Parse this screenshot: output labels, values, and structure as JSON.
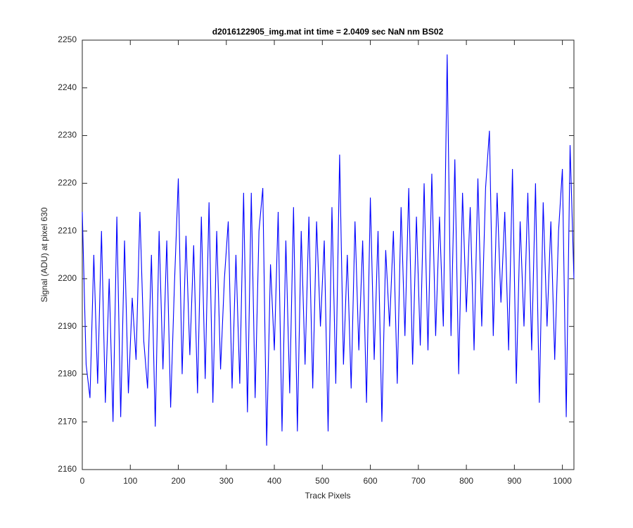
{
  "chart_data": {
    "type": "line",
    "title": "d2016122905_img.mat int time = 2.0409 sec  NaN nm BS02",
    "xlabel": "Track Pixels",
    "ylabel": "Signal (ADU) at pixel 630",
    "x": [
      0,
      8,
      16,
      24,
      32,
      40,
      48,
      56,
      64,
      72,
      80,
      88,
      96,
      104,
      112,
      120,
      128,
      136,
      144,
      152,
      160,
      168,
      176,
      184,
      192,
      200,
      208,
      216,
      224,
      232,
      240,
      248,
      256,
      264,
      272,
      280,
      288,
      296,
      304,
      312,
      320,
      328,
      336,
      344,
      352,
      360,
      368,
      376,
      384,
      392,
      400,
      408,
      416,
      424,
      432,
      440,
      448,
      456,
      464,
      472,
      480,
      488,
      496,
      504,
      512,
      520,
      528,
      536,
      544,
      552,
      560,
      568,
      576,
      584,
      592,
      600,
      608,
      616,
      624,
      632,
      640,
      648,
      656,
      664,
      672,
      680,
      688,
      696,
      704,
      712,
      720,
      728,
      736,
      744,
      752,
      760,
      768,
      776,
      784,
      792,
      800,
      808,
      816,
      824,
      832,
      840,
      848,
      856,
      864,
      872,
      880,
      888,
      896,
      904,
      912,
      920,
      928,
      936,
      944,
      952,
      960,
      968,
      976,
      984,
      992,
      1000,
      1008,
      1016,
      1024
    ],
    "series": [
      {
        "name": "signal",
        "color": "#0000ff",
        "values": [
          2214,
          2182,
          2175,
          2205,
          2178,
          2210,
          2174,
          2200,
          2170,
          2213,
          2171,
          2208,
          2176,
          2196,
          2183,
          2214,
          2187,
          2177,
          2205,
          2169,
          2210,
          2181,
          2208,
          2173,
          2199,
          2221,
          2180,
          2209,
          2184,
          2207,
          2176,
          2213,
          2179,
          2216,
          2174,
          2210,
          2181,
          2200,
          2212,
          2177,
          2205,
          2178,
          2218,
          2172,
          2218,
          2175,
          2210,
          2219,
          2165,
          2203,
          2185,
          2214,
          2168,
          2208,
          2176,
          2215,
          2168,
          2210,
          2182,
          2213,
          2177,
          2212,
          2190,
          2208,
          2168,
          2215,
          2178,
          2226,
          2182,
          2205,
          2177,
          2212,
          2185,
          2208,
          2174,
          2217,
          2183,
          2210,
          2170,
          2206,
          2190,
          2210,
          2178,
          2215,
          2188,
          2219,
          2182,
          2213,
          2186,
          2220,
          2185,
          2222,
          2188,
          2213,
          2190,
          2247,
          2188,
          2225,
          2180,
          2218,
          2193,
          2215,
          2185,
          2221,
          2190,
          2219,
          2231,
          2188,
          2218,
          2195,
          2214,
          2185,
          2223,
          2178,
          2212,
          2190,
          2218,
          2185,
          2220,
          2174,
          2216,
          2190,
          2212,
          2183,
          2210,
          2223,
          2171,
          2228,
          2200
        ]
      }
    ],
    "xlim": [
      0,
      1024
    ],
    "ylim": [
      2160,
      2250
    ],
    "xticks": [
      0,
      100,
      200,
      300,
      400,
      500,
      600,
      700,
      800,
      900,
      1000
    ],
    "yticks": [
      2160,
      2170,
      2180,
      2190,
      2200,
      2210,
      2220,
      2230,
      2240,
      2250
    ],
    "grid": false
  }
}
